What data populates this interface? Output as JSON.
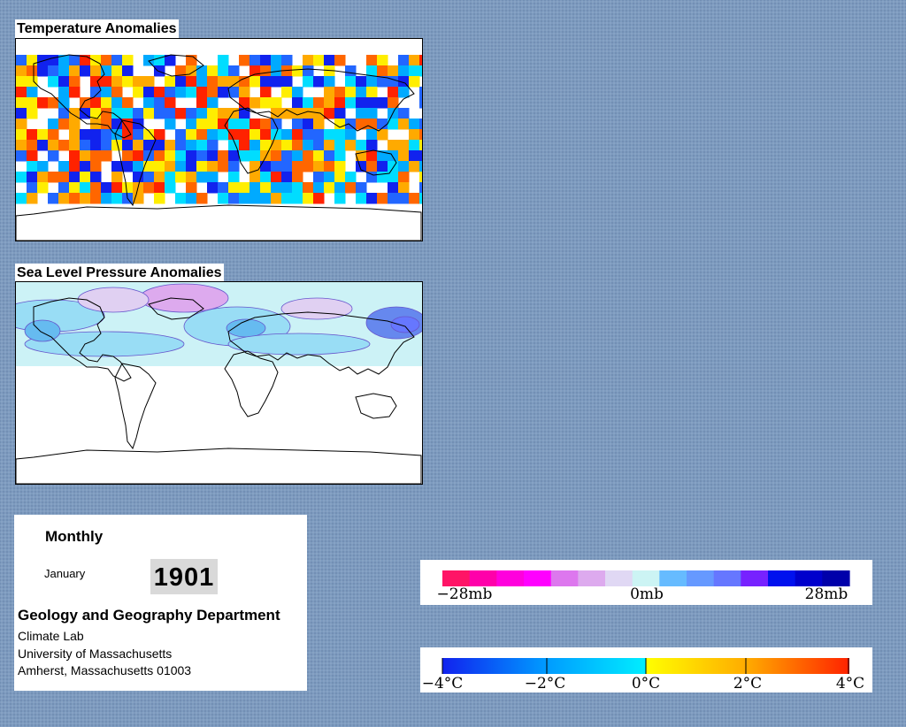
{
  "maps": {
    "temperature": {
      "title": "Temperature Anomalies"
    },
    "pressure": {
      "title": "Sea Level Pressure Anomalies"
    }
  },
  "info": {
    "frequency": "Monthly",
    "month": "January",
    "year": "1901",
    "department": "Geology and Geography Department",
    "lab": "Climate Lab",
    "university": "University of Massachusetts",
    "address": "Amherst, Massachusetts 01003"
  },
  "legends": {
    "pressure": {
      "labels": [
        "−28mb",
        "0mb",
        "28mb"
      ],
      "colors": [
        "#ff1466",
        "#ff00aa",
        "#ff00dd",
        "#ff00ff",
        "#dd77ee",
        "#ddaaee",
        "#e0d8f4",
        "#ccf4f4",
        "#66bbff",
        "#6699ff",
        "#6677ff",
        "#7722ff",
        "#0011ee",
        "#0000cc",
        "#0000aa"
      ]
    },
    "temperature": {
      "labels": [
        "−4°C",
        "−2°C",
        "0°C",
        "2°C",
        "4°C"
      ],
      "stops": [
        "#1122ee",
        "#0099ff",
        "#00eeff",
        "#ffff00",
        "#ffaa00",
        "#ff2200"
      ]
    },
    "temperature_colors": [
      "#1122ee",
      "#2266ff",
      "#00aaff",
      "#00ddff",
      "#ffee00",
      "#ffaa00",
      "#ff6600",
      "#ff2200"
    ],
    "pressure_colors": [
      "#ddaaee",
      "#e0d0f2",
      "#ccf2f6",
      "#99ddf5",
      "#66bbf0",
      "#6688ee",
      "#6677ff"
    ]
  }
}
